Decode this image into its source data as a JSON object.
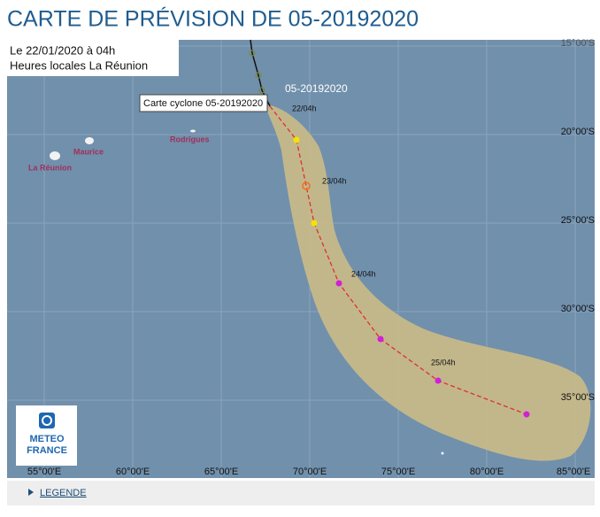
{
  "header": {
    "title": "CARTE DE PRÉVISION DE 05-20192020"
  },
  "info": {
    "date": "Le 22/01/2020 à 04h",
    "timezone": "Heures locales La Réunion"
  },
  "map": {
    "storm_label": "05-20192020",
    "tooltip": "Carte cyclone 05-20192020",
    "track_labels": [
      "22/04h",
      "23/04h",
      "24/04h",
      "25/04h"
    ],
    "latitudes": [
      "15°00'S",
      "20°00'S",
      "25°00'S",
      "30°00'S",
      "35°00'S"
    ],
    "longitudes": [
      "55°00'E",
      "60°00'E",
      "65°00'E",
      "70°00'E",
      "75°00'E",
      "80°00'E",
      "85°00'E"
    ],
    "places": [
      "Maurice",
      "La Réunion",
      "Rodrigues"
    ],
    "logo": [
      "METEO",
      "FRANCE"
    ]
  },
  "footer": {
    "legend": "LEGENDE"
  }
}
